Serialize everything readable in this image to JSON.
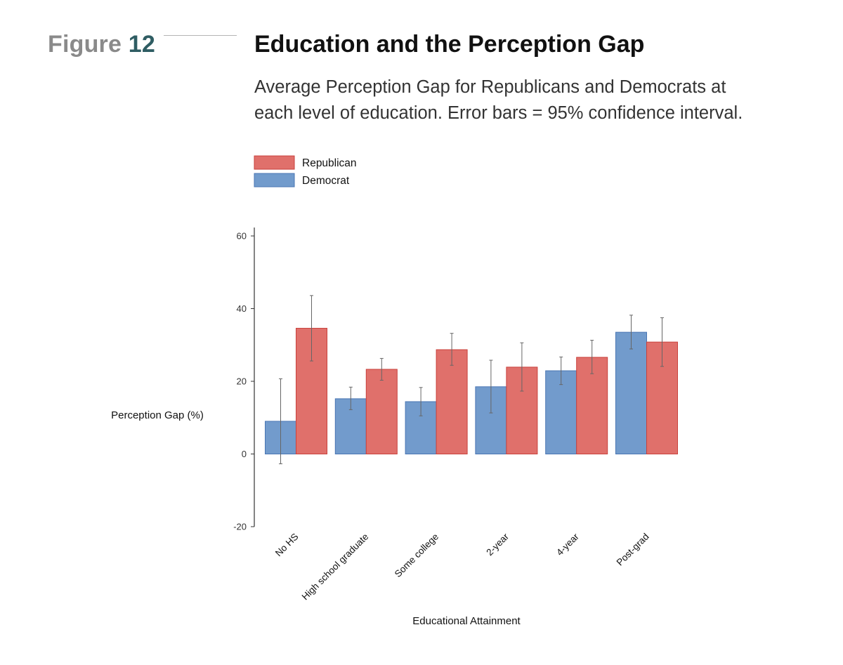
{
  "figure": {
    "label_word": "Figure",
    "label_number": "12",
    "title": "Education and the Perception Gap",
    "subtitle": "Average Perception Gap for Republicans and Democrats at each level of education. Error bars = 95% confidence interval."
  },
  "colors": {
    "republican": "#e0706b",
    "republican_edge": "#c9413c",
    "democrat": "#729bcc",
    "democrat_edge": "#4a76b3",
    "axis": "#333333",
    "errorbar": "#666666",
    "figure_word": "#8a8a8a",
    "figure_number": "#2f5d63"
  },
  "chart_data": {
    "type": "bar",
    "xlabel": "Educational Attainment",
    "ylabel": "Perception Gap (%)",
    "ylim": [
      -20,
      60
    ],
    "yticks": [
      -20,
      0,
      20,
      40,
      60
    ],
    "grid": false,
    "legend_position": "top-left",
    "categories": [
      "No HS",
      "High school graduate",
      "Some college",
      "2-year",
      "4-year",
      "Post-grad"
    ],
    "series": [
      {
        "name": "Democrat",
        "values": [
          9,
          15.2,
          14.4,
          18.5,
          22.9,
          33.5
        ],
        "ci_low": [
          -2.7,
          12.2,
          10.5,
          11.3,
          19.1,
          28.9
        ],
        "ci_high": [
          20.7,
          18.4,
          18.3,
          25.8,
          26.7,
          38.2
        ]
      },
      {
        "name": "Republican",
        "values": [
          34.6,
          23.3,
          28.7,
          23.9,
          26.6,
          30.8
        ],
        "ci_low": [
          25.6,
          20.3,
          24.4,
          17.3,
          22.1,
          24.1
        ],
        "ci_high": [
          43.6,
          26.3,
          33.2,
          30.6,
          31.3,
          37.5
        ]
      }
    ]
  }
}
